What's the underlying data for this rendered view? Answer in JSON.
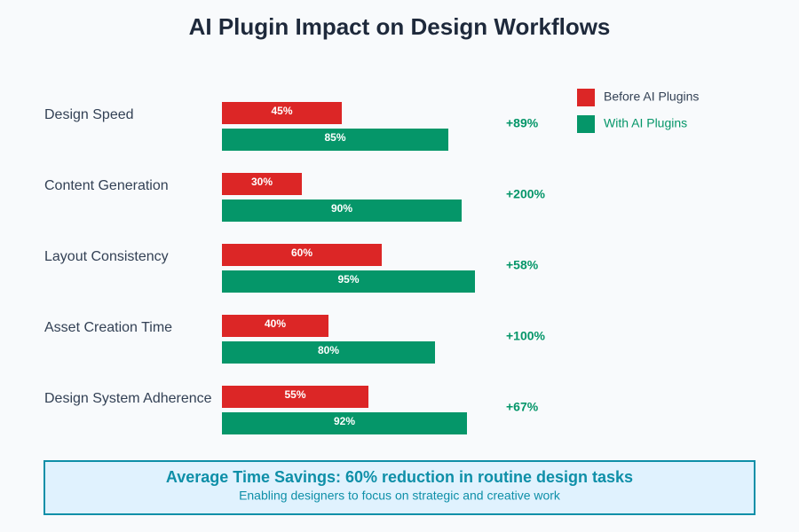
{
  "chart_data": {
    "type": "bar",
    "orientation": "horizontal",
    "title": "AI Plugin Impact on Design Workflows",
    "categories": [
      "Design Speed",
      "Content Generation",
      "Layout Consistency",
      "Asset Creation Time",
      "Design System Adherence"
    ],
    "series": [
      {
        "name": "Before AI Plugins",
        "color": "#dc2626",
        "values": [
          45,
          30,
          60,
          40,
          55
        ],
        "value_labels": [
          "45%",
          "30%",
          "60%",
          "40%",
          "55%"
        ]
      },
      {
        "name": "With AI Plugins",
        "color": "#059669",
        "values": [
          85,
          90,
          95,
          80,
          92
        ],
        "value_labels": [
          "85%",
          "90%",
          "95%",
          "80%",
          "92%"
        ]
      }
    ],
    "changes": [
      "+89%",
      "+200%",
      "+58%",
      "+100%",
      "+67%"
    ],
    "xlim": [
      0,
      100
    ],
    "summary": {
      "title": "Average Time Savings: 60% reduction in routine design tasks",
      "subtitle": "Enabling designers to focus on strategic and creative work"
    }
  }
}
